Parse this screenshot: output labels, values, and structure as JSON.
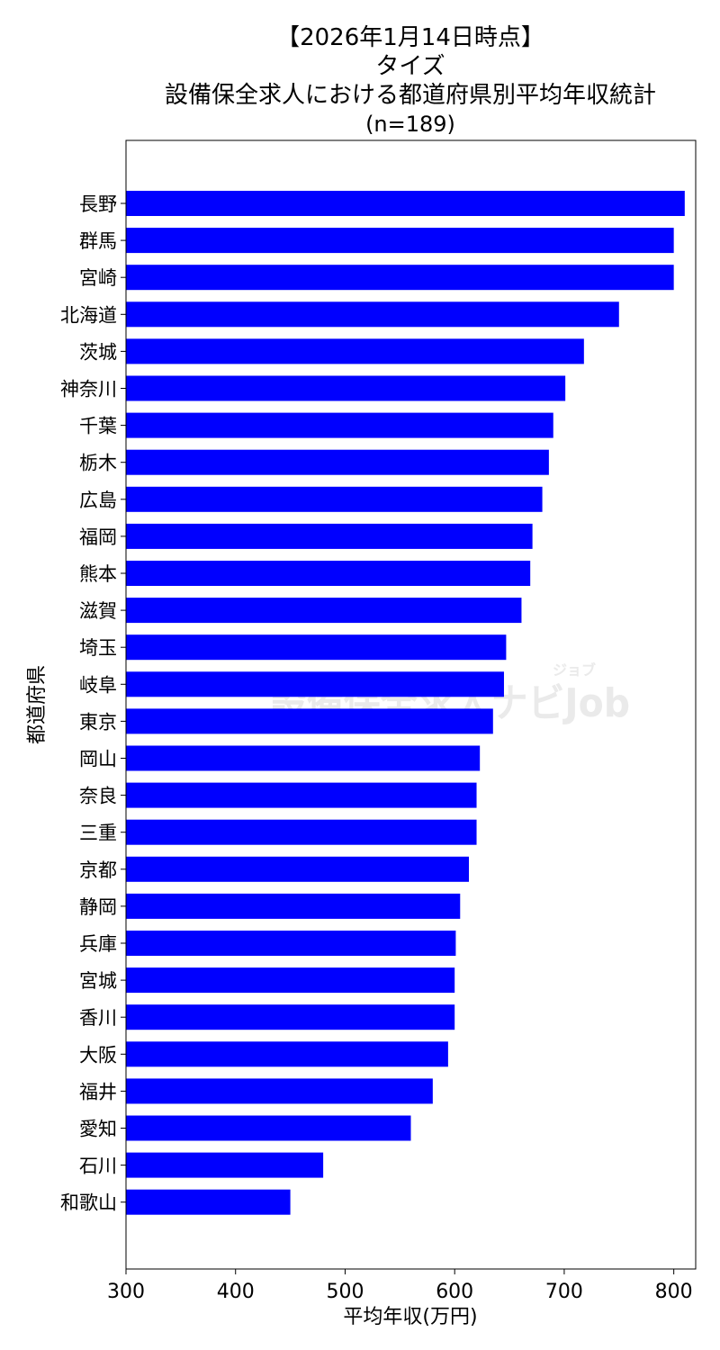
{
  "chart_data": {
    "type": "bar",
    "orientation": "horizontal",
    "title_lines": [
      "【2026年1月14日時点】",
      "タイズ",
      "設備保全求人における都道府県別平均年収統計",
      "(n=189)"
    ],
    "xlabel": "平均年収(万円)",
    "ylabel": "都道府県",
    "xlim": [
      300,
      820
    ],
    "xticks": [
      300,
      400,
      500,
      600,
      700,
      800
    ],
    "bar_color": "#0000ff",
    "grid": false,
    "categories": [
      "長野",
      "群馬",
      "宮崎",
      "北海道",
      "茨城",
      "神奈川",
      "千葉",
      "栃木",
      "広島",
      "福岡",
      "熊本",
      "滋賀",
      "埼玉",
      "岐阜",
      "東京",
      "岡山",
      "奈良",
      "三重",
      "京都",
      "静岡",
      "兵庫",
      "宮城",
      "香川",
      "大阪",
      "福井",
      "愛知",
      "石川",
      "和歌山"
    ],
    "values": [
      810,
      800,
      800,
      750,
      718,
      701,
      690,
      686,
      680,
      671,
      669,
      661,
      647,
      645,
      635,
      623,
      620,
      620,
      613,
      605,
      601,
      600,
      600,
      594,
      580,
      560,
      480,
      450
    ]
  },
  "watermark": {
    "text": "設備保全求人ナビJob",
    "small_text": "ジョブ"
  }
}
